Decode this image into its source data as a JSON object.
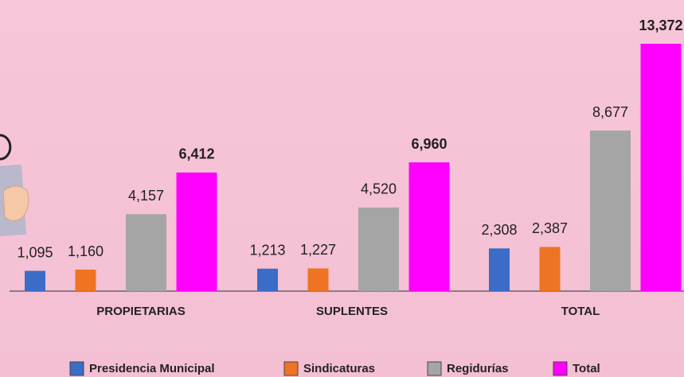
{
  "chart_data": {
    "type": "bar",
    "categories": [
      "PROPIETARIAS",
      "SUPLENTES",
      "TOTAL"
    ],
    "series": [
      {
        "name": "Presidencia Municipal",
        "color": "#3b6cc6",
        "values": [
          1095,
          1213,
          2308
        ],
        "value_labels": [
          "1,095",
          "1,213",
          "2,308"
        ]
      },
      {
        "name": "Sindicaturas",
        "color": "#ee7423",
        "values": [
          1160,
          1227,
          2387
        ],
        "value_labels": [
          "1,160",
          "1,227",
          "2,387"
        ]
      },
      {
        "name": "Regidurías",
        "color": "#a5a5a5",
        "values": [
          4157,
          4520,
          8677
        ],
        "value_labels": [
          "4,157",
          "4,520",
          "8,677"
        ]
      },
      {
        "name": "Total",
        "color": "#ff00ff",
        "values": [
          6412,
          6960,
          13372
        ],
        "value_labels": [
          "6,412",
          "6,960",
          "13,372"
        ]
      }
    ]
  }
}
